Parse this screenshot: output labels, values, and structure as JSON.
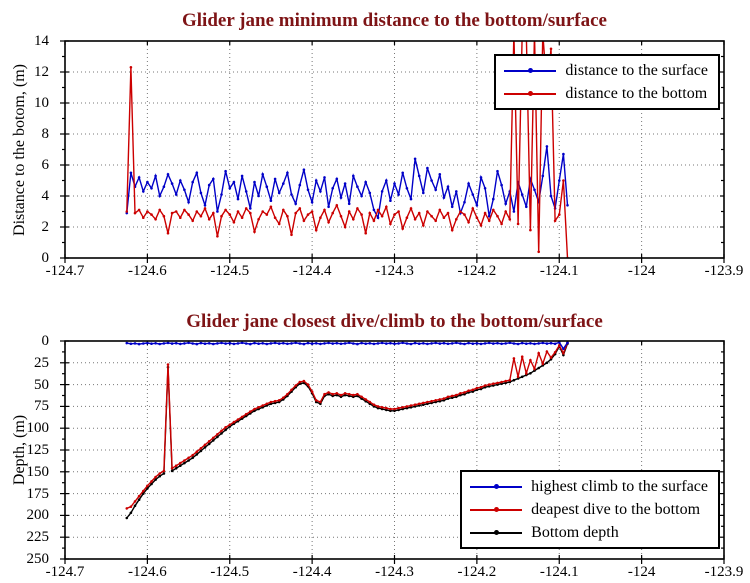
{
  "page": {
    "background": "#ffffff",
    "title_color": "#7E1416",
    "grid_color": "#777777",
    "axis_color": "#000000"
  },
  "chart_data": [
    {
      "type": "line",
      "title": "Glider jane minimum distance to the bottom/surface",
      "ylabel": "Distance to the botom, (m)",
      "xlabel": "",
      "xlim": [
        -124.7,
        -123.9
      ],
      "ylim": [
        0,
        14
      ],
      "y_reversed": false,
      "grid": true,
      "y_minor": 1,
      "xticks": [
        -124.7,
        -124.6,
        -124.5,
        -124.4,
        -124.3,
        -124.2,
        -124.1,
        -124,
        -123.9
      ],
      "xtick_labels": [
        "-124.7",
        "-124.6",
        "-124.5",
        "-124.4",
        "-124.3",
        "-124.2",
        "-124.1",
        "-124",
        "-123.9"
      ],
      "yticks": [
        0,
        2,
        4,
        6,
        8,
        10,
        12,
        14
      ],
      "legend_position": "top-right-inside",
      "legend": [
        {
          "label": "distance to the surface",
          "color": "#0000C8"
        },
        {
          "label": "distance to the bottom",
          "color": "#CC0000"
        }
      ],
      "series": [
        {
          "name": "distance-to-the-surface",
          "color": "#0000C8",
          "x0": -124.625,
          "dx": 0.005,
          "y": [
            2.9,
            5.5,
            4.6,
            5.2,
            4.3,
            4.9,
            4.5,
            5.3,
            4.0,
            4.6,
            5.4,
            4.8,
            4.1,
            5.0,
            4.4,
            3.6,
            4.9,
            5.5,
            4.2,
            3.4,
            4.7,
            5.1,
            3.0,
            4.1,
            5.6,
            4.5,
            4.9,
            3.8,
            5.3,
            4.3,
            3.2,
            4.9,
            4.0,
            5.4,
            4.6,
            3.7,
            5.1,
            4.2,
            4.8,
            5.5,
            4.1,
            3.5,
            4.7,
            5.7,
            4.4,
            3.6,
            5.0,
            4.3,
            5.2,
            3.3,
            4.5,
            5.1,
            3.9,
            4.8,
            3.5,
            5.3,
            4.6,
            4.0,
            4.9,
            4.2,
            3.1,
            2.6,
            4.3,
            5.0,
            3.7,
            4.8,
            4.1,
            5.5,
            4.5,
            3.8,
            6.4,
            5.3,
            4.2,
            5.8,
            5.0,
            4.4,
            5.4,
            3.9,
            4.6,
            3.3,
            4.3,
            2.9,
            3.6,
            4.8,
            4.1,
            3.4,
            5.2,
            4.5,
            2.7,
            3.8,
            5.6,
            4.7,
            3.5,
            4.3,
            3.0,
            4.9,
            4.1,
            3.3,
            5.1,
            4.4,
            3.6,
            5.3,
            7.2,
            4.0,
            3.2,
            5.0,
            6.7,
            3.4
          ]
        },
        {
          "name": "distance-to-the-bottom",
          "color": "#CC0000",
          "x0": -124.625,
          "dx": 0.005,
          "y": [
            3.0,
            12.3,
            2.9,
            3.1,
            2.6,
            3.0,
            2.8,
            2.5,
            3.1,
            2.7,
            1.6,
            2.9,
            3.0,
            2.6,
            3.1,
            2.8,
            2.4,
            3.0,
            2.7,
            3.2,
            2.5,
            2.9,
            1.4,
            2.7,
            3.1,
            2.8,
            2.3,
            3.0,
            2.6,
            3.2,
            2.9,
            1.7,
            2.5,
            3.0,
            2.8,
            3.3,
            2.6,
            2.2,
            3.1,
            2.7,
            1.5,
            2.9,
            3.2,
            2.4,
            2.8,
            3.0,
            1.8,
            2.6,
            3.1,
            2.3,
            2.9,
            3.4,
            2.7,
            2.0,
            3.0,
            2.5,
            3.2,
            2.8,
            1.6,
            2.9,
            2.4,
            3.1,
            2.7,
            3.3,
            2.2,
            2.8,
            3.0,
            1.9,
            2.6,
            3.2,
            2.5,
            2.9,
            2.1,
            3.0,
            2.7,
            2.4,
            3.1,
            2.6,
            2.9,
            1.8,
            2.5,
            3.0,
            2.8,
            2.3,
            3.2,
            2.6,
            2.1,
            2.9,
            2.4,
            3.1,
            2.7,
            2.2,
            3.0,
            2.5,
            14.5,
            2.2,
            14.5,
            14.5,
            1.8,
            14.5,
            0.4,
            14.5,
            10.8,
            13.5,
            2.4,
            2.8,
            5.0,
            0.0
          ]
        }
      ]
    },
    {
      "type": "line",
      "title": "Glider jane closest dive/climb to the bottom/surface",
      "ylabel": "Depth, (m)",
      "xlabel": "",
      "xlim": [
        -124.7,
        -123.9
      ],
      "ylim": [
        0,
        250
      ],
      "y_reversed": true,
      "grid": true,
      "y_minor": 12.5,
      "xticks": [
        -124.7,
        -124.6,
        -124.5,
        -124.4,
        -124.3,
        -124.2,
        -124.1,
        -124,
        -123.9
      ],
      "xtick_labels": [
        "-124.7",
        "-124.6",
        "-124.5",
        "-124.4",
        "-124.3",
        "-124.2",
        "-124.1",
        "-124",
        "-123.9"
      ],
      "yticks": [
        0,
        25,
        50,
        75,
        100,
        125,
        150,
        175,
        200,
        225,
        250
      ],
      "legend_position": "bottom-right-inside",
      "legend": [
        {
          "label": "highest climb to the surface",
          "color": "#0000C8"
        },
        {
          "label": "deapest dive to the bottom",
          "color": "#CC0000"
        },
        {
          "label": "Bottom depth",
          "color": "#000000"
        }
      ],
      "series": [
        {
          "name": "bottom-depth",
          "color": "#000000",
          "x0": -124.625,
          "dx": 0.005,
          "y": [
            203,
            197,
            189,
            182,
            175,
            169,
            164,
            159,
            155,
            152,
            30,
            149,
            146,
            143,
            140,
            137,
            134,
            130,
            126,
            122,
            118,
            114,
            110,
            106,
            102,
            98,
            95,
            92,
            89,
            86,
            83,
            80,
            78,
            76,
            74,
            72,
            71,
            70,
            67,
            63,
            58,
            53,
            49,
            48,
            52,
            60,
            70,
            72,
            63,
            61,
            63,
            62,
            64,
            62,
            63,
            64,
            63,
            66,
            69,
            72,
            75,
            77,
            78,
            79,
            80,
            80,
            79,
            78,
            77,
            76,
            75,
            74,
            73,
            72,
            71,
            70,
            69,
            68,
            66,
            65,
            64,
            62,
            61,
            59,
            58,
            56,
            55,
            53,
            52,
            51,
            50,
            49,
            48,
            47,
            45,
            43,
            41,
            39,
            37,
            34,
            31,
            28,
            25,
            21,
            15,
            6,
            16,
            3
          ]
        },
        {
          "name": "deapest-dive-to-the-bottom",
          "color": "#CC0000",
          "x0": -124.625,
          "dx": 0.005,
          "y": [
            192,
            190,
            184,
            178,
            172,
            166,
            161,
            156,
            152,
            149,
            27,
            146,
            143,
            140,
            137,
            134,
            131,
            127,
            123,
            119,
            115,
            111,
            107,
            103,
            99,
            96,
            93,
            90,
            87,
            84,
            81,
            78,
            76,
            74,
            72,
            70,
            69,
            68,
            65,
            61,
            56,
            51,
            47,
            46,
            50,
            58,
            68,
            70,
            61,
            59,
            61,
            60,
            62,
            60,
            61,
            62,
            61,
            64,
            67,
            70,
            73,
            75,
            76,
            77,
            78,
            78,
            77,
            76,
            75,
            74,
            73,
            72,
            71,
            70,
            69,
            68,
            67,
            66,
            64,
            63,
            62,
            60,
            59,
            57,
            56,
            54,
            53,
            51,
            50,
            49,
            48,
            47,
            46,
            45,
            20,
            41,
            18,
            37,
            22,
            32,
            14,
            26,
            12,
            19,
            13,
            5,
            14,
            2
          ]
        },
        {
          "name": "highest-climb-to-the-surface",
          "color": "#0000C8",
          "x0": -124.625,
          "dx": 0.005,
          "y": [
            2.4,
            3.2,
            2.7,
            3.5,
            2.9,
            2.3,
            3.1,
            2.6,
            3.4,
            2.8,
            2.2,
            3.0,
            2.5,
            3.3,
            2.7,
            2.1,
            2.9,
            3.6,
            2.4,
            3.1,
            2.6,
            3.4,
            2.8,
            2.2,
            3.0,
            2.5,
            3.3,
            2.7,
            2.1,
            2.9,
            3.5,
            2.4,
            3.1,
            2.6,
            3.4,
            2.8,
            2.2,
            3.0,
            2.5,
            3.2,
            2.7,
            2.1,
            2.9,
            3.6,
            2.4,
            3.1,
            2.6,
            3.3,
            2.8,
            2.2,
            3.0,
            2.5,
            3.2,
            2.7,
            2.1,
            2.9,
            3.5,
            2.4,
            3.1,
            2.6,
            3.3,
            2.8,
            2.2,
            3.0,
            2.5,
            3.2,
            2.7,
            2.1,
            2.9,
            3.4,
            2.4,
            3.1,
            2.6,
            3.3,
            2.8,
            2.2,
            3.0,
            2.5,
            3.2,
            2.7,
            2.1,
            2.9,
            3.4,
            2.4,
            3.1,
            2.6,
            3.3,
            2.8,
            2.2,
            3.0,
            2.5,
            3.2,
            2.7,
            2.1,
            2.9,
            3.4,
            2.4,
            3.1,
            2.6,
            3.3,
            2.8,
            2.2,
            3.0,
            2.5,
            3.2,
            1.5,
            9.0,
            2.0
          ]
        }
      ]
    }
  ]
}
